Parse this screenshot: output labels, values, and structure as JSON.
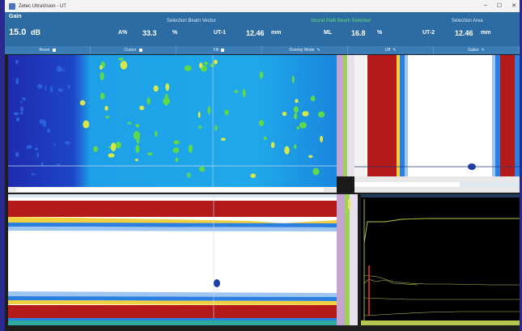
{
  "window": {
    "title": "Zetec UltraVision - UT"
  },
  "header": {
    "gain_label": "Gain",
    "gain_value": "15.0",
    "gain_unit": "dB",
    "center_label": "Selection Beam Vector",
    "green_label": "Sound Path Beam Selected",
    "right_label": "Selection Area",
    "amp_label": "A%",
    "amp_value": "33.3",
    "amp_unit": "%",
    "ut1_label": "UT-1",
    "ut1_value": "12.46",
    "ut1_unit": "mm",
    "ml_label": "ML",
    "ml_value": "16.8",
    "ml_unit": "%",
    "ut2_label": "UT-2",
    "ut2_value": "12.46",
    "ut2_unit": "mm"
  },
  "toolbar": {
    "items": [
      "Reset",
      "Cursor",
      "Fill",
      "Overlay Mode",
      "Off",
      "Gates"
    ]
  },
  "colors": {
    "header_bg": "#2d6ca3",
    "cscan_bg": "#1f6fd8",
    "bscan_red": "#b51a1a",
    "ascan_trace": "#b7c64d",
    "gate_marker": "#e03a1a"
  }
}
